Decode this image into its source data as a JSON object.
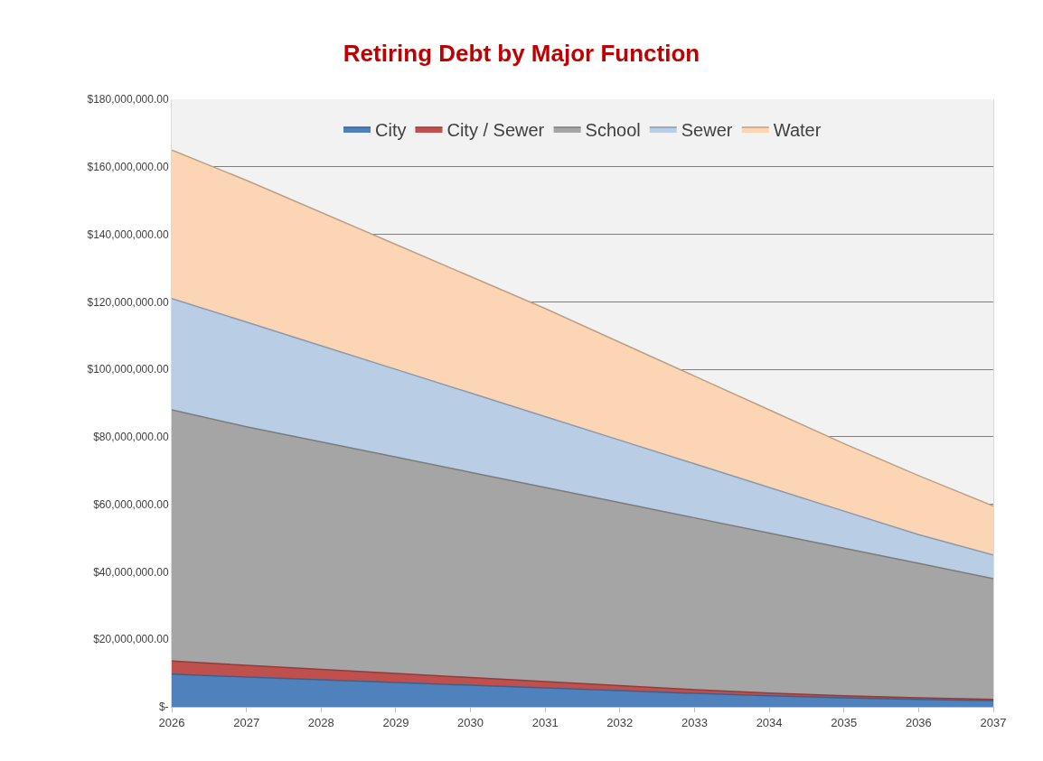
{
  "chart_data": {
    "type": "area",
    "title": "Retiring Debt by Major Function",
    "stacked": true,
    "categories": [
      "2026",
      "2027",
      "2028",
      "2029",
      "2030",
      "2031",
      "2032",
      "2033",
      "2034",
      "2035",
      "2036",
      "2037"
    ],
    "series": [
      {
        "name": "City",
        "color": "#4f81bd",
        "values": [
          9700000,
          8800000,
          8000000,
          7200000,
          6400000,
          5600000,
          4800000,
          4000000,
          3300000,
          2700000,
          2200000,
          1800000
        ]
      },
      {
        "name": "City / Sewer",
        "color": "#c0504d",
        "values": [
          3900000,
          3500000,
          3100000,
          2700000,
          2300000,
          1900000,
          1500000,
          1100000,
          800000,
          600000,
          500000,
          400000
        ]
      },
      {
        "name": "School",
        "color": "#a5a5a5",
        "values": [
          74400000,
          70700000,
          67400000,
          64100000,
          60800000,
          57500000,
          54200000,
          50900000,
          47400000,
          43700000,
          39800000,
          35800000
        ]
      },
      {
        "name": "Sewer",
        "color": "#b9cde5",
        "values": [
          33000000,
          31000000,
          28500000,
          26000000,
          23500000,
          21000000,
          18500000,
          16000000,
          13500000,
          11000000,
          8500000,
          7000000
        ]
      },
      {
        "name": "Water",
        "color": "#fcd5b5",
        "values": [
          44000000,
          42000000,
          39500000,
          37000000,
          34500000,
          32000000,
          29000000,
          26000000,
          23000000,
          20000000,
          17500000,
          14500000
        ]
      }
    ],
    "ylim": [
      0,
      180000000
    ],
    "yticks": [
      {
        "value": 0,
        "label": "$-"
      },
      {
        "value": 20000000,
        "label": "$20,000,000.00"
      },
      {
        "value": 40000000,
        "label": "$40,000,000.00"
      },
      {
        "value": 60000000,
        "label": "$60,000,000.00"
      },
      {
        "value": 80000000,
        "label": "$80,000,000.00"
      },
      {
        "value": 100000000,
        "label": "$100,000,000.00"
      },
      {
        "value": 120000000,
        "label": "$120,000,000.00"
      },
      {
        "value": 140000000,
        "label": "$140,000,000.00"
      },
      {
        "value": 160000000,
        "label": "$160,000,000.00"
      },
      {
        "value": 180000000,
        "label": "$180,000,000.00"
      }
    ],
    "grid": "y",
    "legend": "top"
  }
}
